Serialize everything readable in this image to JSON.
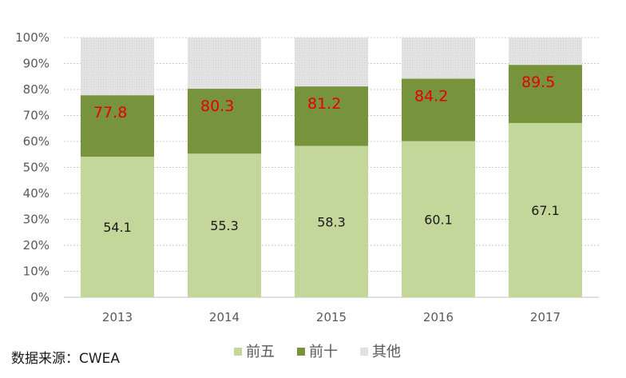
{
  "chart_data": {
    "type": "stacked-bar",
    "categories": [
      "2013",
      "2014",
      "2015",
      "2016",
      "2017"
    ],
    "series": [
      {
        "name": "前五",
        "values": [
          54.1,
          55.3,
          58.3,
          60.1,
          67.1
        ],
        "color": "#c4d79b"
      },
      {
        "name": "前十",
        "values": [
          23.7,
          25.0,
          22.9,
          24.1,
          22.4
        ],
        "color": "#77933c",
        "cumulative_labels": [
          "77.8",
          "80.3",
          "81.2",
          "84.2",
          "89.5"
        ]
      },
      {
        "name": "其他",
        "values": [
          22.2,
          19.7,
          18.8,
          15.8,
          10.5
        ],
        "color": "#d9d9d9"
      }
    ],
    "inner_labels": [
      "54.1",
      "55.3",
      "58.3",
      "60.1",
      "67.1"
    ],
    "ylim": [
      0,
      100
    ],
    "yticks": [
      "0%",
      "10%",
      "20%",
      "30%",
      "40%",
      "50%",
      "60%",
      "70%",
      "80%",
      "90%",
      "100%"
    ],
    "grid": true,
    "legend_position": "bottom",
    "label_colors": {
      "inner": "#1a1a1a",
      "top": "#e60000"
    }
  },
  "source_note": "数据来源：CWEA"
}
